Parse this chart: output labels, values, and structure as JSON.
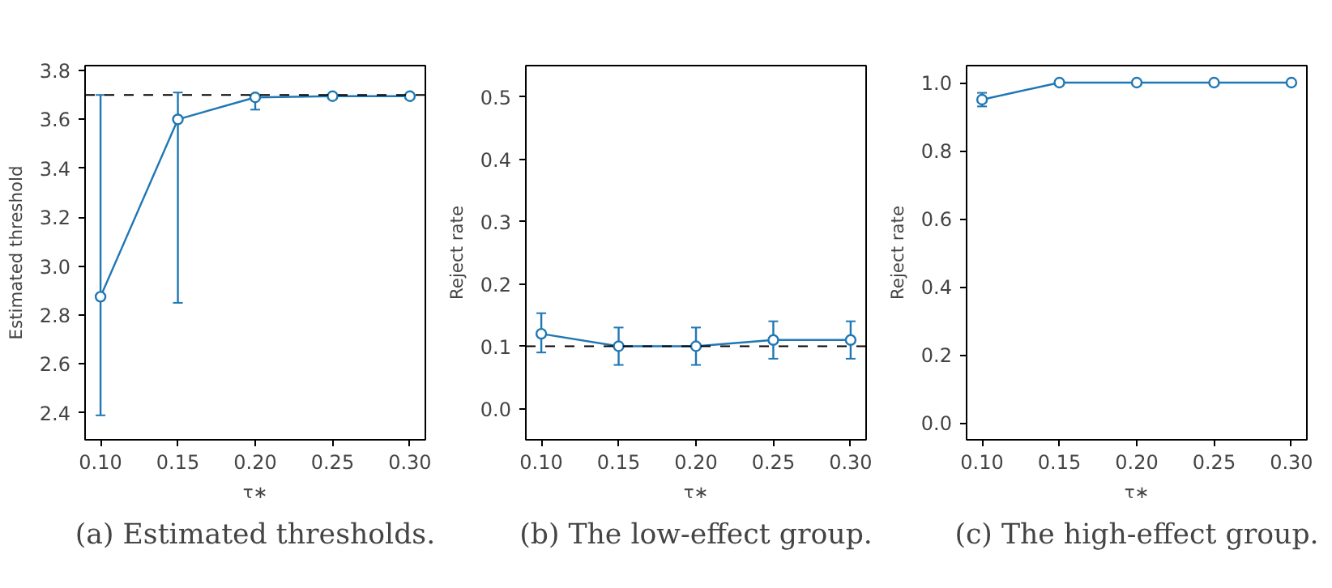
{
  "chart_data": [
    {
      "type": "line",
      "title": "(a) Estimated thresholds.",
      "xlabel": "τ∗",
      "ylabel": "Estimated threshold",
      "x": [
        0.1,
        0.15,
        0.2,
        0.25,
        0.3
      ],
      "series": [
        {
          "color": "#1f77b4",
          "values": [
            2.875,
            3.6,
            3.69,
            3.695,
            3.695
          ],
          "errors": [
            [
              2.39,
              3.7
            ],
            [
              2.85,
              3.71
            ],
            [
              3.64,
              3.7
            ],
            null,
            null
          ]
        }
      ],
      "xlim": [
        0.09,
        0.31
      ],
      "ylim": [
        2.29,
        3.82
      ],
      "xticks": [
        {
          "value": 0.1,
          "label": "0.10"
        },
        {
          "value": 0.15,
          "label": "0.15"
        },
        {
          "value": 0.2,
          "label": "0.20"
        },
        {
          "value": 0.25,
          "label": "0.25"
        },
        {
          "value": 0.3,
          "label": "0.30"
        }
      ],
      "yticks": [
        2.4,
        2.6,
        2.8,
        {
          "value": 3.0,
          "label": "3.0"
        },
        3.2,
        3.4,
        3.6,
        3.8
      ],
      "ref_lines": [
        {
          "axis": "y",
          "value": 3.7,
          "color": "#000000",
          "line_style": "dashed"
        }
      ],
      "marker": "circle",
      "line_style": "solid",
      "grid": false
    },
    {
      "type": "line",
      "title": "(b) The low-effect group.",
      "xlabel": "τ∗",
      "ylabel": "Reject rate",
      "x": [
        0.1,
        0.15,
        0.2,
        0.25,
        0.3
      ],
      "series": [
        {
          "color": "#1f77b4",
          "values": [
            0.12,
            0.1,
            0.1,
            0.11,
            0.11
          ],
          "errors": [
            [
              0.09,
              0.153
            ],
            [
              0.07,
              0.13
            ],
            [
              0.07,
              0.13
            ],
            [
              0.08,
              0.14
            ],
            [
              0.08,
              0.14
            ]
          ]
        }
      ],
      "xlim": [
        0.09,
        0.31
      ],
      "ylim": [
        -0.05,
        0.55
      ],
      "xticks": [
        {
          "value": 0.1,
          "label": "0.10"
        },
        {
          "value": 0.15,
          "label": "0.15"
        },
        {
          "value": 0.2,
          "label": "0.20"
        },
        {
          "value": 0.25,
          "label": "0.25"
        },
        {
          "value": 0.3,
          "label": "0.30"
        }
      ],
      "yticks": [
        {
          "value": 0,
          "label": "0.0"
        },
        0.1,
        0.2,
        0.3,
        0.4,
        0.5
      ],
      "ref_lines": [
        {
          "axis": "y",
          "value": 0.1,
          "color": "#000000",
          "line_style": "dashed"
        }
      ],
      "marker": "circle",
      "line_style": "solid",
      "grid": false
    },
    {
      "type": "line",
      "title": "(c) The high-effect group.",
      "xlabel": "τ∗",
      "ylabel": "Reject rate",
      "x": [
        0.1,
        0.15,
        0.2,
        0.25,
        0.3
      ],
      "series": [
        {
          "color": "#1f77b4",
          "values": [
            0.95,
            1.0,
            1.0,
            1.0,
            1.0
          ],
          "errors": [
            [
              0.93,
              0.97
            ],
            null,
            null,
            null,
            null
          ]
        }
      ],
      "xlim": [
        0.09,
        0.31
      ],
      "ylim": [
        -0.05,
        1.05
      ],
      "xticks": [
        {
          "value": 0.1,
          "label": "0.10"
        },
        {
          "value": 0.15,
          "label": "0.15"
        },
        {
          "value": 0.2,
          "label": "0.20"
        },
        {
          "value": 0.25,
          "label": "0.25"
        },
        {
          "value": 0.3,
          "label": "0.30"
        }
      ],
      "yticks": [
        {
          "value": 0,
          "label": "0.0"
        },
        0.2,
        0.4,
        0.6,
        0.8,
        {
          "value": 1.0,
          "label": "1.0"
        }
      ],
      "marker": "circle",
      "line_style": "solid",
      "grid": false
    }
  ]
}
